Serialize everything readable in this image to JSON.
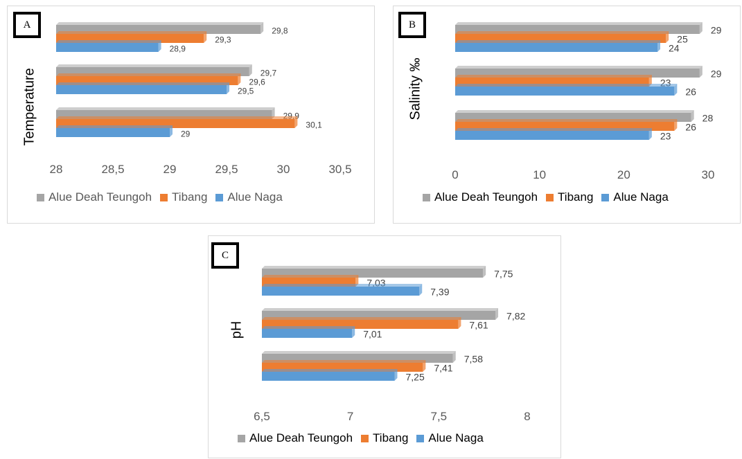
{
  "colors": {
    "alue_deah_teungoh": "#a5a5a5",
    "tibang": "#ed7d31",
    "alue_naga": "#5b9bd5"
  },
  "legend": [
    "Alue Deah Teungoh",
    "Tibang",
    "Alue Naga"
  ],
  "chart_data": [
    {
      "panel": "A",
      "type": "bar",
      "orientation": "horizontal",
      "title": "",
      "xlabel": "",
      "ylabel": "Temperature",
      "xlim": [
        28,
        30.5
      ],
      "xticks": [
        "28",
        "28,5",
        "29",
        "29,5",
        "30",
        "30,5"
      ],
      "legend_position": "bottom",
      "groups": [
        {
          "series": [
            {
              "name": "Alue Deah Teungoh",
              "value": 29.8,
              "label": "29,8"
            },
            {
              "name": "Tibang",
              "value": 29.3,
              "label": "29,3"
            },
            {
              "name": "Alue Naga",
              "value": 28.9,
              "label": "28,9"
            }
          ]
        },
        {
          "series": [
            {
              "name": "Alue Deah Teungoh",
              "value": 29.7,
              "label": "29,7"
            },
            {
              "name": "Tibang",
              "value": 29.6,
              "label": "29,6"
            },
            {
              "name": "Alue Naga",
              "value": 29.5,
              "label": "29,5"
            }
          ]
        },
        {
          "series": [
            {
              "name": "Alue Deah Teungoh",
              "value": 29.9,
              "label": "29,9"
            },
            {
              "name": "Tibang",
              "value": 30.1,
              "label": "30,1"
            },
            {
              "name": "Alue Naga",
              "value": 29,
              "label": "29"
            }
          ]
        }
      ]
    },
    {
      "panel": "B",
      "type": "bar",
      "orientation": "horizontal",
      "title": "",
      "xlabel": "",
      "ylabel": "Salinity ‰",
      "xlim": [
        0,
        30
      ],
      "xticks": [
        "0",
        "10",
        "20",
        "30"
      ],
      "legend_position": "bottom",
      "groups": [
        {
          "series": [
            {
              "name": "Alue Deah Teungoh",
              "value": 29,
              "label": "29"
            },
            {
              "name": "Tibang",
              "value": 25,
              "label": "25"
            },
            {
              "name": "Alue Naga",
              "value": 24,
              "label": "24"
            }
          ]
        },
        {
          "series": [
            {
              "name": "Alue Deah Teungoh",
              "value": 29,
              "label": "29"
            },
            {
              "name": "Tibang",
              "value": 23,
              "label": "23"
            },
            {
              "name": "Alue Naga",
              "value": 26,
              "label": "26"
            }
          ]
        },
        {
          "series": [
            {
              "name": "Alue Deah Teungoh",
              "value": 28,
              "label": "28"
            },
            {
              "name": "Tibang",
              "value": 26,
              "label": "26"
            },
            {
              "name": "Alue Naga",
              "value": 23,
              "label": "23"
            }
          ]
        }
      ]
    },
    {
      "panel": "C",
      "type": "bar",
      "orientation": "horizontal",
      "title": "",
      "xlabel": "",
      "ylabel": "pH",
      "xlim": [
        6.5,
        8
      ],
      "xticks": [
        "6,5",
        "7",
        "7,5",
        "8"
      ],
      "legend_position": "bottom",
      "groups": [
        {
          "series": [
            {
              "name": "Alue Deah Teungoh",
              "value": 7.75,
              "label": "7,75"
            },
            {
              "name": "Tibang",
              "value": 7.03,
              "label": "7,03"
            },
            {
              "name": "Alue Naga",
              "value": 7.39,
              "label": "7,39"
            }
          ]
        },
        {
          "series": [
            {
              "name": "Alue Deah Teungoh",
              "value": 7.82,
              "label": "7,82"
            },
            {
              "name": "Tibang",
              "value": 7.61,
              "label": "7,61"
            },
            {
              "name": "Alue Naga",
              "value": 7.01,
              "label": "7,01"
            }
          ]
        },
        {
          "series": [
            {
              "name": "Alue Deah Teungoh",
              "value": 7.58,
              "label": "7,58"
            },
            {
              "name": "Tibang",
              "value": 7.41,
              "label": "7,41"
            },
            {
              "name": "Alue Naga",
              "value": 7.25,
              "label": "7,25"
            }
          ]
        }
      ]
    }
  ]
}
